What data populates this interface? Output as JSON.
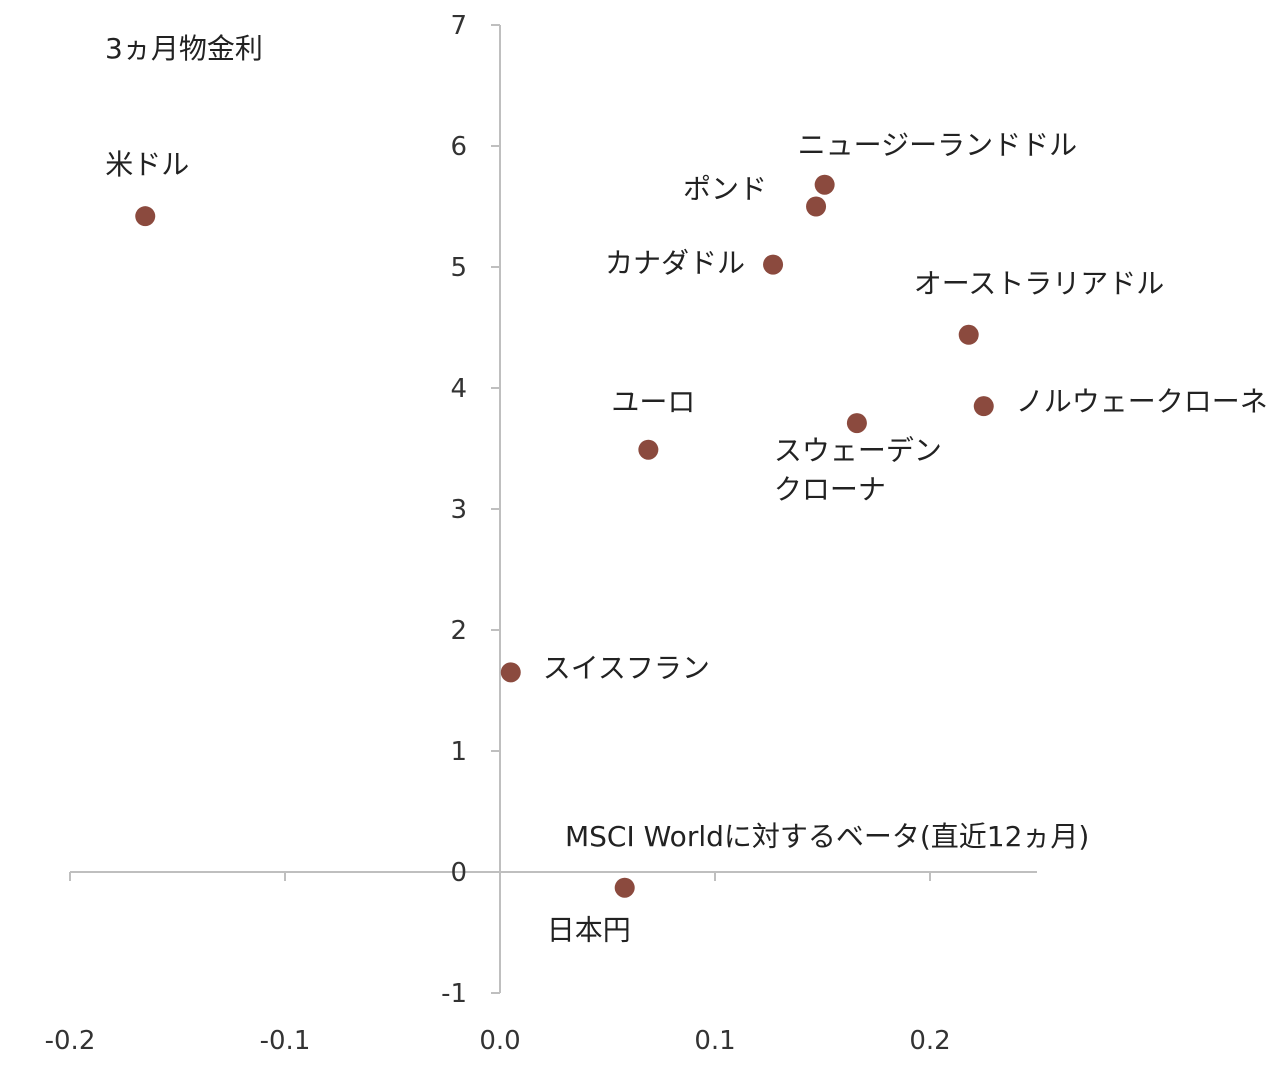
{
  "chart_data": {
    "type": "scatter",
    "ylabel": "3ヵ月物金利",
    "xlabel": "MSCI Worldに対するベータ(直近12ヵ月)",
    "xlim": [
      -0.2,
      0.25
    ],
    "ylim": [
      -1,
      7
    ],
    "x_ticks": [
      "-0.2",
      "-0.1",
      "0.0",
      "0.1",
      "0.2"
    ],
    "y_ticks": [
      "7",
      "6",
      "5",
      "4",
      "3",
      "2",
      "1",
      "0",
      "-1"
    ],
    "marker_color": "#8B4A3E",
    "points": [
      {
        "label": "米ドル",
        "x": -0.165,
        "y": 5.42
      },
      {
        "label": "ニュージーランドドル",
        "x": 0.151,
        "y": 5.68
      },
      {
        "label": "ポンド",
        "x": 0.147,
        "y": 5.5
      },
      {
        "label": "カナダドル",
        "x": 0.127,
        "y": 5.02
      },
      {
        "label": "オーストラリアドル",
        "x": 0.218,
        "y": 4.44
      },
      {
        "label": "ノルウェークローネ",
        "x": 0.225,
        "y": 3.85
      },
      {
        "label": "スウェーデン",
        "label2": "クローナ",
        "x": 0.166,
        "y": 3.71
      },
      {
        "label": "ユーロ",
        "x": 0.069,
        "y": 3.49
      },
      {
        "label": "スイスフラン",
        "x": 0.005,
        "y": 1.65
      },
      {
        "label": "日本円",
        "x": 0.058,
        "y": -0.13
      }
    ]
  }
}
